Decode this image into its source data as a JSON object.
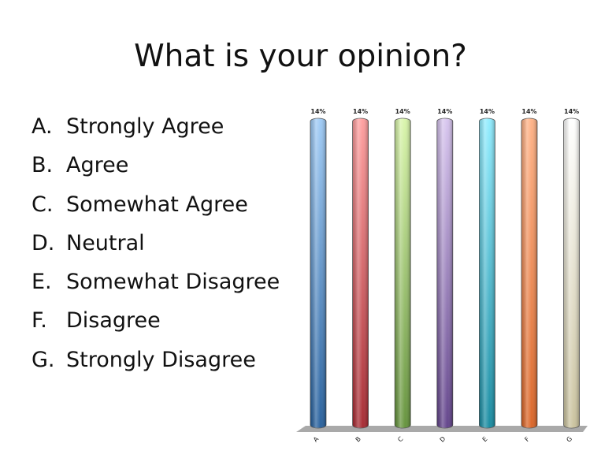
{
  "slide": {
    "title": "What is your opinion?",
    "options": [
      {
        "letter": "A.",
        "text": "Strongly Agree"
      },
      {
        "letter": "B.",
        "text": "Agree"
      },
      {
        "letter": "C.",
        "text": "Somewhat Agree"
      },
      {
        "letter": "D.",
        "text": "Neutral"
      },
      {
        "letter": "E.",
        "text": "Somewhat Disagree"
      },
      {
        "letter": "F.",
        "text": "Disagree"
      },
      {
        "letter": "G.",
        "text": "Strongly Disagree"
      }
    ]
  },
  "chart_data": {
    "type": "bar",
    "categories": [
      "A",
      "B",
      "C",
      "D",
      "E",
      "F",
      "G"
    ],
    "values": [
      14,
      14,
      14,
      14,
      14,
      14,
      14
    ],
    "data_labels": [
      "14%",
      "14%",
      "14%",
      "14%",
      "14%",
      "14%",
      "14%"
    ],
    "ylim": [
      0,
      14
    ],
    "grid": false,
    "colors": [
      {
        "top": "#9cc9f5",
        "bottom": "#1f5a99"
      },
      {
        "top": "#ff9c9c",
        "bottom": "#a3222a"
      },
      {
        "top": "#d8f5a8",
        "bottom": "#5f8f35"
      },
      {
        "top": "#d6c3ee",
        "bottom": "#5c3c86"
      },
      {
        "top": "#8eecff",
        "bottom": "#10879e"
      },
      {
        "top": "#ffb083",
        "bottom": "#d95f1f"
      },
      {
        "top": "#ffffff",
        "bottom": "#c8c09a"
      }
    ],
    "floor_color": "#a9a9a9"
  }
}
